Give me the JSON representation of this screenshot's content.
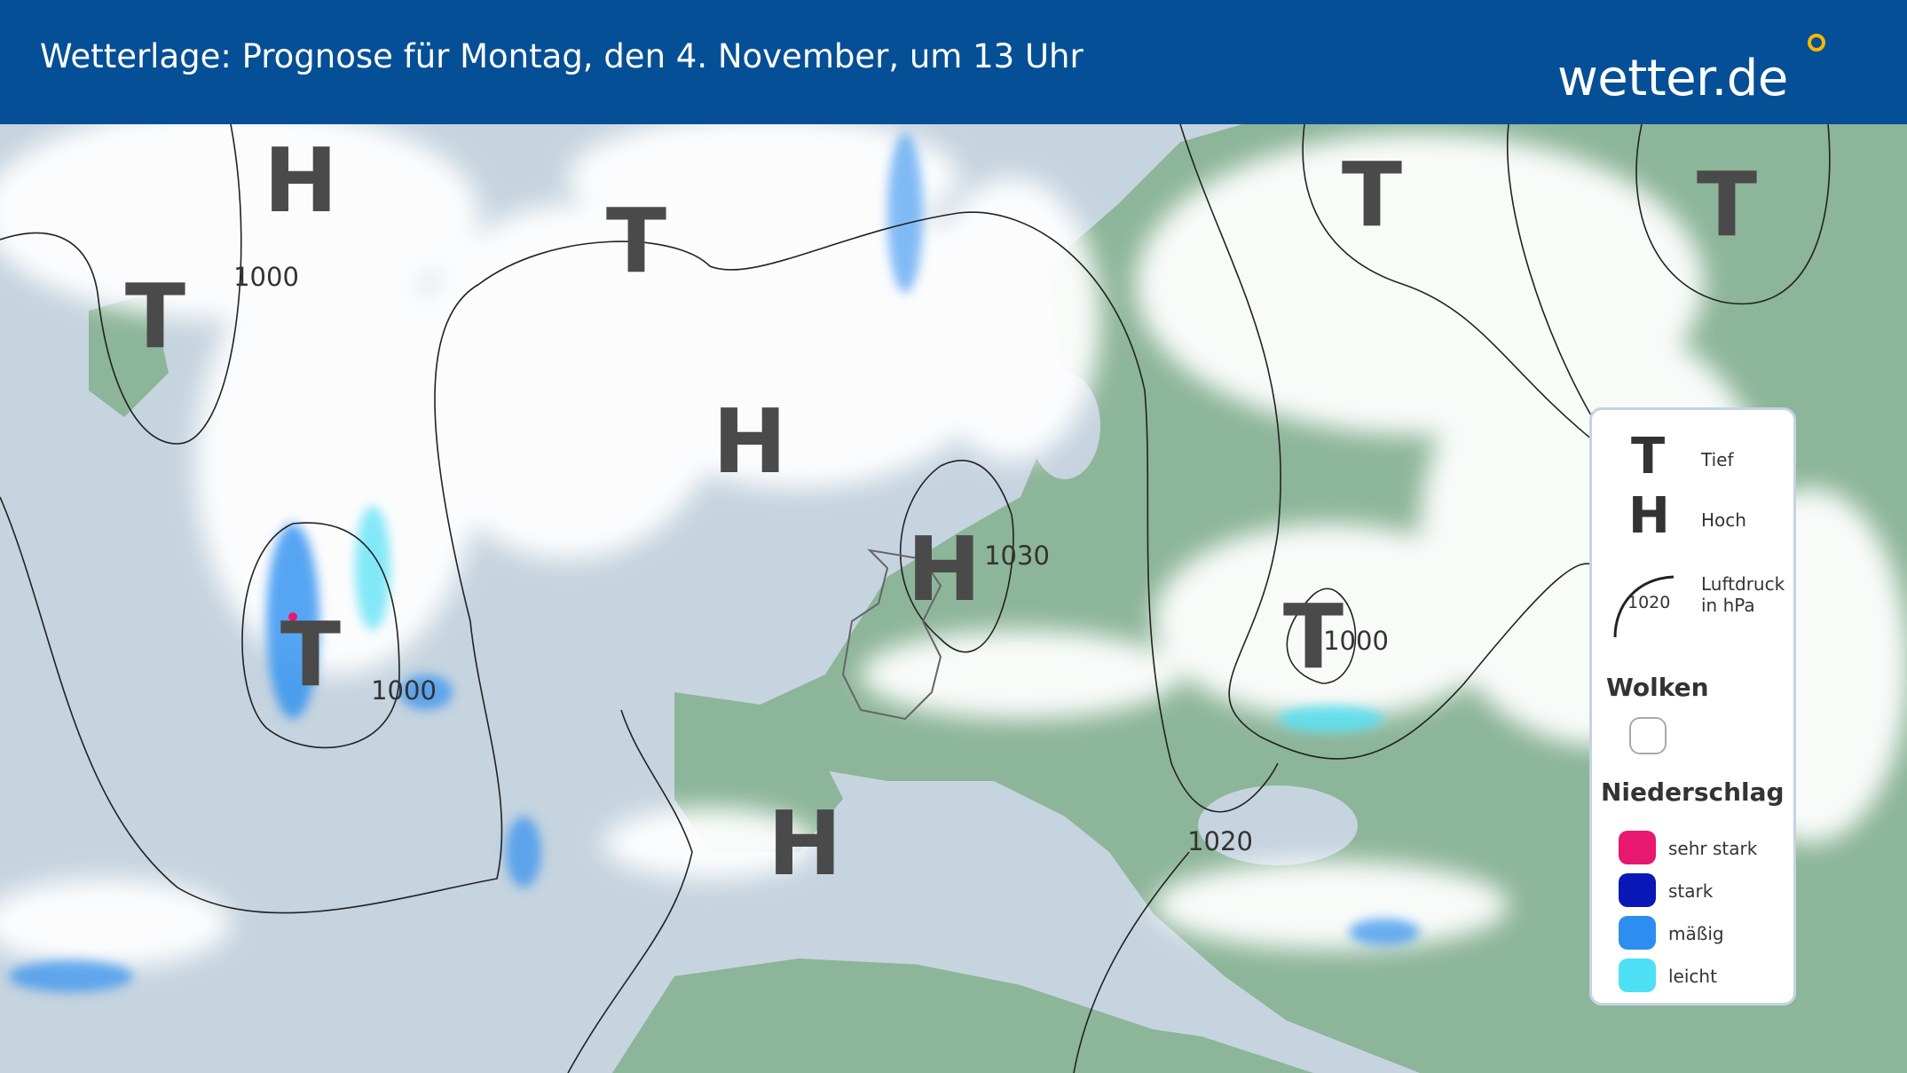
{
  "header": {
    "title": "Wetterlage: Prognose für Montag, den 4. November, um 13 Uhr",
    "logo": "wetter.de"
  },
  "pressure_systems": [
    "H",
    "T",
    "T",
    "H",
    "H",
    "T",
    "H",
    "T",
    "T",
    "T"
  ],
  "isobar_labels": [
    "1000",
    "1000",
    "1030",
    "1000",
    "1020"
  ],
  "legend": {
    "symbols": [
      {
        "glyph": "T",
        "label": "Tief"
      },
      {
        "glyph": "H",
        "label": "Hoch"
      },
      {
        "glyph": "1020",
        "label": "Luftdruck in hPa"
      }
    ],
    "clouds_title": "Wolken",
    "precip_title": "Niederschlag",
    "precip": [
      {
        "label": "sehr stark",
        "color": "#e8176f"
      },
      {
        "label": "stark",
        "color": "#0a18b8"
      },
      {
        "label": "mäßig",
        "color": "#2d8ef0"
      },
      {
        "label": "leicht",
        "color": "#4ee0f5"
      }
    ]
  }
}
